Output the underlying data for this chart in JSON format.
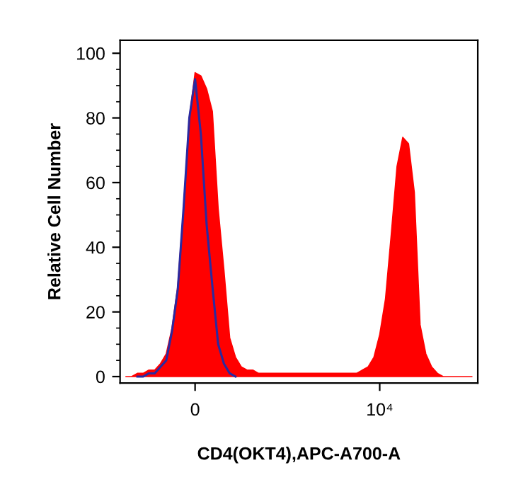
{
  "chart_data": {
    "type": "area",
    "xlabel": "CD4(OKT4),APC-A700-A",
    "ylabel": "Relative Cell Number",
    "categories": [
      null,
      null,
      null,
      null,
      null,
      null,
      null,
      null,
      null,
      null,
      null,
      null,
      "0",
      null,
      null,
      null,
      null,
      null,
      null,
      null,
      null,
      null,
      null,
      null,
      null,
      null,
      null,
      null,
      null,
      null,
      null,
      null,
      null,
      null,
      null,
      null,
      null,
      null,
      null,
      null,
      null,
      null,
      null,
      null,
      "10⁴",
      null,
      null,
      null,
      null,
      null,
      null,
      null,
      null,
      null,
      null,
      null,
      null,
      null,
      null,
      null,
      null
    ],
    "ylim": [
      -2,
      104
    ],
    "yticks": [
      0,
      20,
      40,
      60,
      80,
      100
    ],
    "grid": false,
    "legend": false,
    "series": [
      {
        "color": "#ff0000",
        "values": [
          0,
          0,
          1,
          1,
          2,
          2,
          4,
          7,
          15,
          28,
          52,
          80,
          94,
          93,
          89,
          82,
          52,
          33,
          12,
          6,
          3,
          2,
          2,
          1,
          1,
          1,
          1,
          1,
          1,
          1,
          1,
          1,
          1,
          1,
          1,
          1,
          1,
          1,
          1,
          1,
          1,
          2,
          3,
          6,
          13,
          24,
          44,
          65,
          74,
          72,
          57,
          16,
          7,
          3,
          1,
          0,
          0,
          0,
          0,
          0,
          0
        ]
      },
      {
        "type": "line",
        "color": "#2a2aa0",
        "values": [
          null,
          null,
          0,
          0,
          1,
          1,
          3,
          5,
          14,
          27,
          52,
          80,
          92,
          75,
          47,
          28,
          10,
          4,
          1,
          0,
          null,
          null,
          null,
          null,
          null,
          null,
          null,
          null,
          null,
          null,
          null,
          null,
          null,
          null,
          null,
          null,
          null,
          null,
          null,
          null,
          null,
          null,
          null,
          null,
          null,
          null,
          null,
          null,
          null,
          null,
          null,
          null,
          null,
          null,
          null,
          null,
          null,
          null,
          null,
          null,
          null
        ]
      }
    ]
  }
}
